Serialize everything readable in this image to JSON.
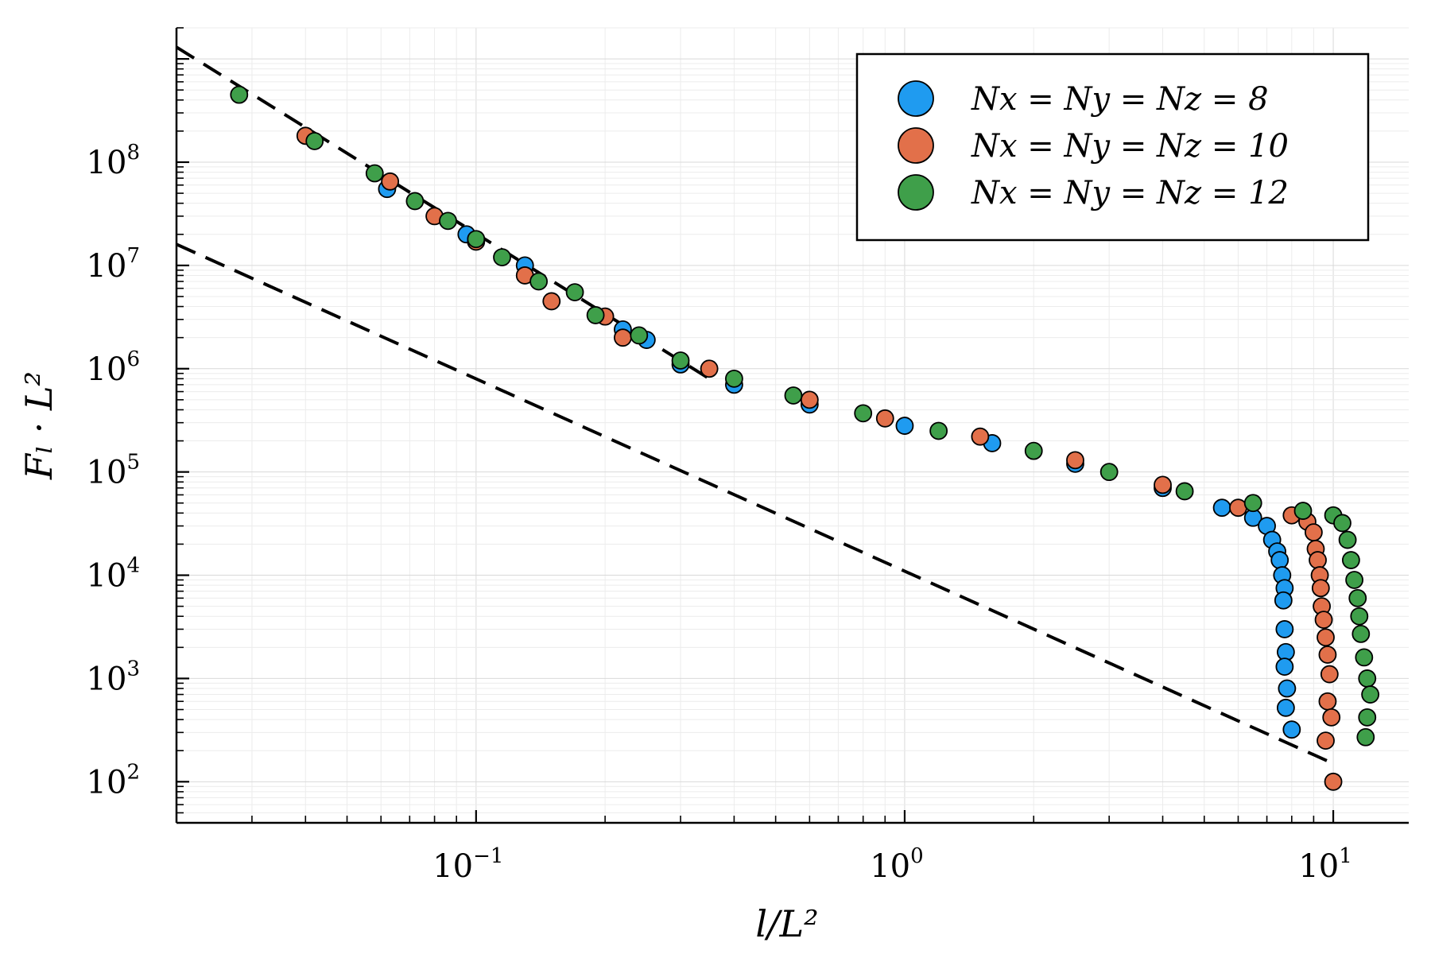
{
  "chart_data": {
    "type": "scatter",
    "xlabel": "l/L²",
    "ylabel": "Fₗ · L²",
    "xscale": "log",
    "yscale": "log",
    "xlim": [
      0.02,
      15
    ],
    "ylim": [
      40,
      2000000000
    ],
    "grid": true,
    "legend_position": "top-right",
    "x_ticks": [
      {
        "base": "10",
        "exp": "−1",
        "value": 0.1
      },
      {
        "base": "10",
        "exp": "0",
        "value": 1
      },
      {
        "base": "10",
        "exp": "1",
        "value": 10
      }
    ],
    "y_ticks": [
      {
        "base": "10",
        "exp": "2",
        "value": 100
      },
      {
        "base": "10",
        "exp": "3",
        "value": 1000
      },
      {
        "base": "10",
        "exp": "4",
        "value": 10000
      },
      {
        "base": "10",
        "exp": "5",
        "value": 100000
      },
      {
        "base": "10",
        "exp": "6",
        "value": 1000000
      },
      {
        "base": "10",
        "exp": "7",
        "value": 10000000
      },
      {
        "base": "10",
        "exp": "8",
        "value": 100000000
      }
    ],
    "reference_lines": [
      {
        "x": [
          0.02,
          0.35
        ],
        "y": [
          1300000000,
          800000
        ]
      },
      {
        "x": [
          0.02,
          10
        ],
        "y": [
          16000000,
          150
        ]
      }
    ],
    "series": [
      {
        "name": "Nx = Ny = Nz = 8",
        "legend_label": "N_x = N_y = N_z = 8",
        "color": "#1f9bf0",
        "x": [
          0.062,
          0.095,
          0.13,
          0.22,
          0.25,
          0.3,
          0.4,
          0.6,
          1.0,
          1.6,
          2.5,
          4.0,
          5.5,
          6.5,
          7.0,
          7.2,
          7.4,
          7.5,
          7.6,
          7.7,
          7.65,
          7.7,
          7.75,
          7.7,
          7.8,
          7.75,
          8.0
        ],
        "y": [
          55000000,
          20000000,
          10000000,
          2400000,
          1900000,
          1100000,
          700000,
          450000,
          280000,
          190000,
          120000,
          70000,
          45000,
          36000,
          30000,
          22000,
          17000,
          14000,
          10000,
          7500,
          5700,
          3000,
          1800,
          1300,
          800,
          520,
          320
        ]
      },
      {
        "name": "Nx = Ny = Nz = 10",
        "legend_label": "N_x = N_y = N_z = 10",
        "color": "#e2704a",
        "x": [
          0.04,
          0.063,
          0.08,
          0.1,
          0.13,
          0.15,
          0.2,
          0.22,
          0.35,
          0.6,
          0.9,
          1.5,
          2.5,
          4.0,
          6.0,
          8.0,
          8.7,
          9.0,
          9.1,
          9.2,
          9.3,
          9.35,
          9.4,
          9.5,
          9.6,
          9.7,
          9.8,
          9.7,
          9.9,
          9.6,
          10.0
        ],
        "y": [
          180000000,
          65000000,
          30000000,
          17000000,
          8000000,
          4500000,
          3200000,
          2000000,
          1000000,
          500000,
          330000,
          220000,
          130000,
          75000,
          45000,
          38000,
          33000,
          26000,
          18000,
          14000,
          10000,
          7500,
          5000,
          3700,
          2500,
          1700,
          1100,
          600,
          420,
          250,
          100
        ]
      },
      {
        "name": "Nx = Ny = Nz = 12",
        "legend_label": "N_x = N_y = N_z = 12",
        "color": "#3f9f4a",
        "x": [
          0.028,
          0.042,
          0.058,
          0.072,
          0.086,
          0.1,
          0.115,
          0.14,
          0.17,
          0.19,
          0.24,
          0.3,
          0.4,
          0.55,
          0.8,
          1.2,
          2.0,
          3.0,
          4.5,
          6.5,
          8.5,
          10.0,
          10.5,
          10.8,
          11.0,
          11.2,
          11.4,
          11.5,
          11.6,
          11.8,
          12.0,
          12.2,
          12.0,
          11.9
        ],
        "y": [
          450000000,
          160000000,
          78000000,
          42000000,
          27000000,
          18000000,
          12000000,
          7000000,
          5500000,
          3300000,
          2100000,
          1200000,
          800000,
          550000,
          370000,
          250000,
          160000,
          100000,
          65000,
          50000,
          42000,
          38000,
          32000,
          22000,
          14000,
          9000,
          6000,
          4000,
          2700,
          1600,
          1000,
          700,
          420,
          270
        ]
      }
    ]
  }
}
